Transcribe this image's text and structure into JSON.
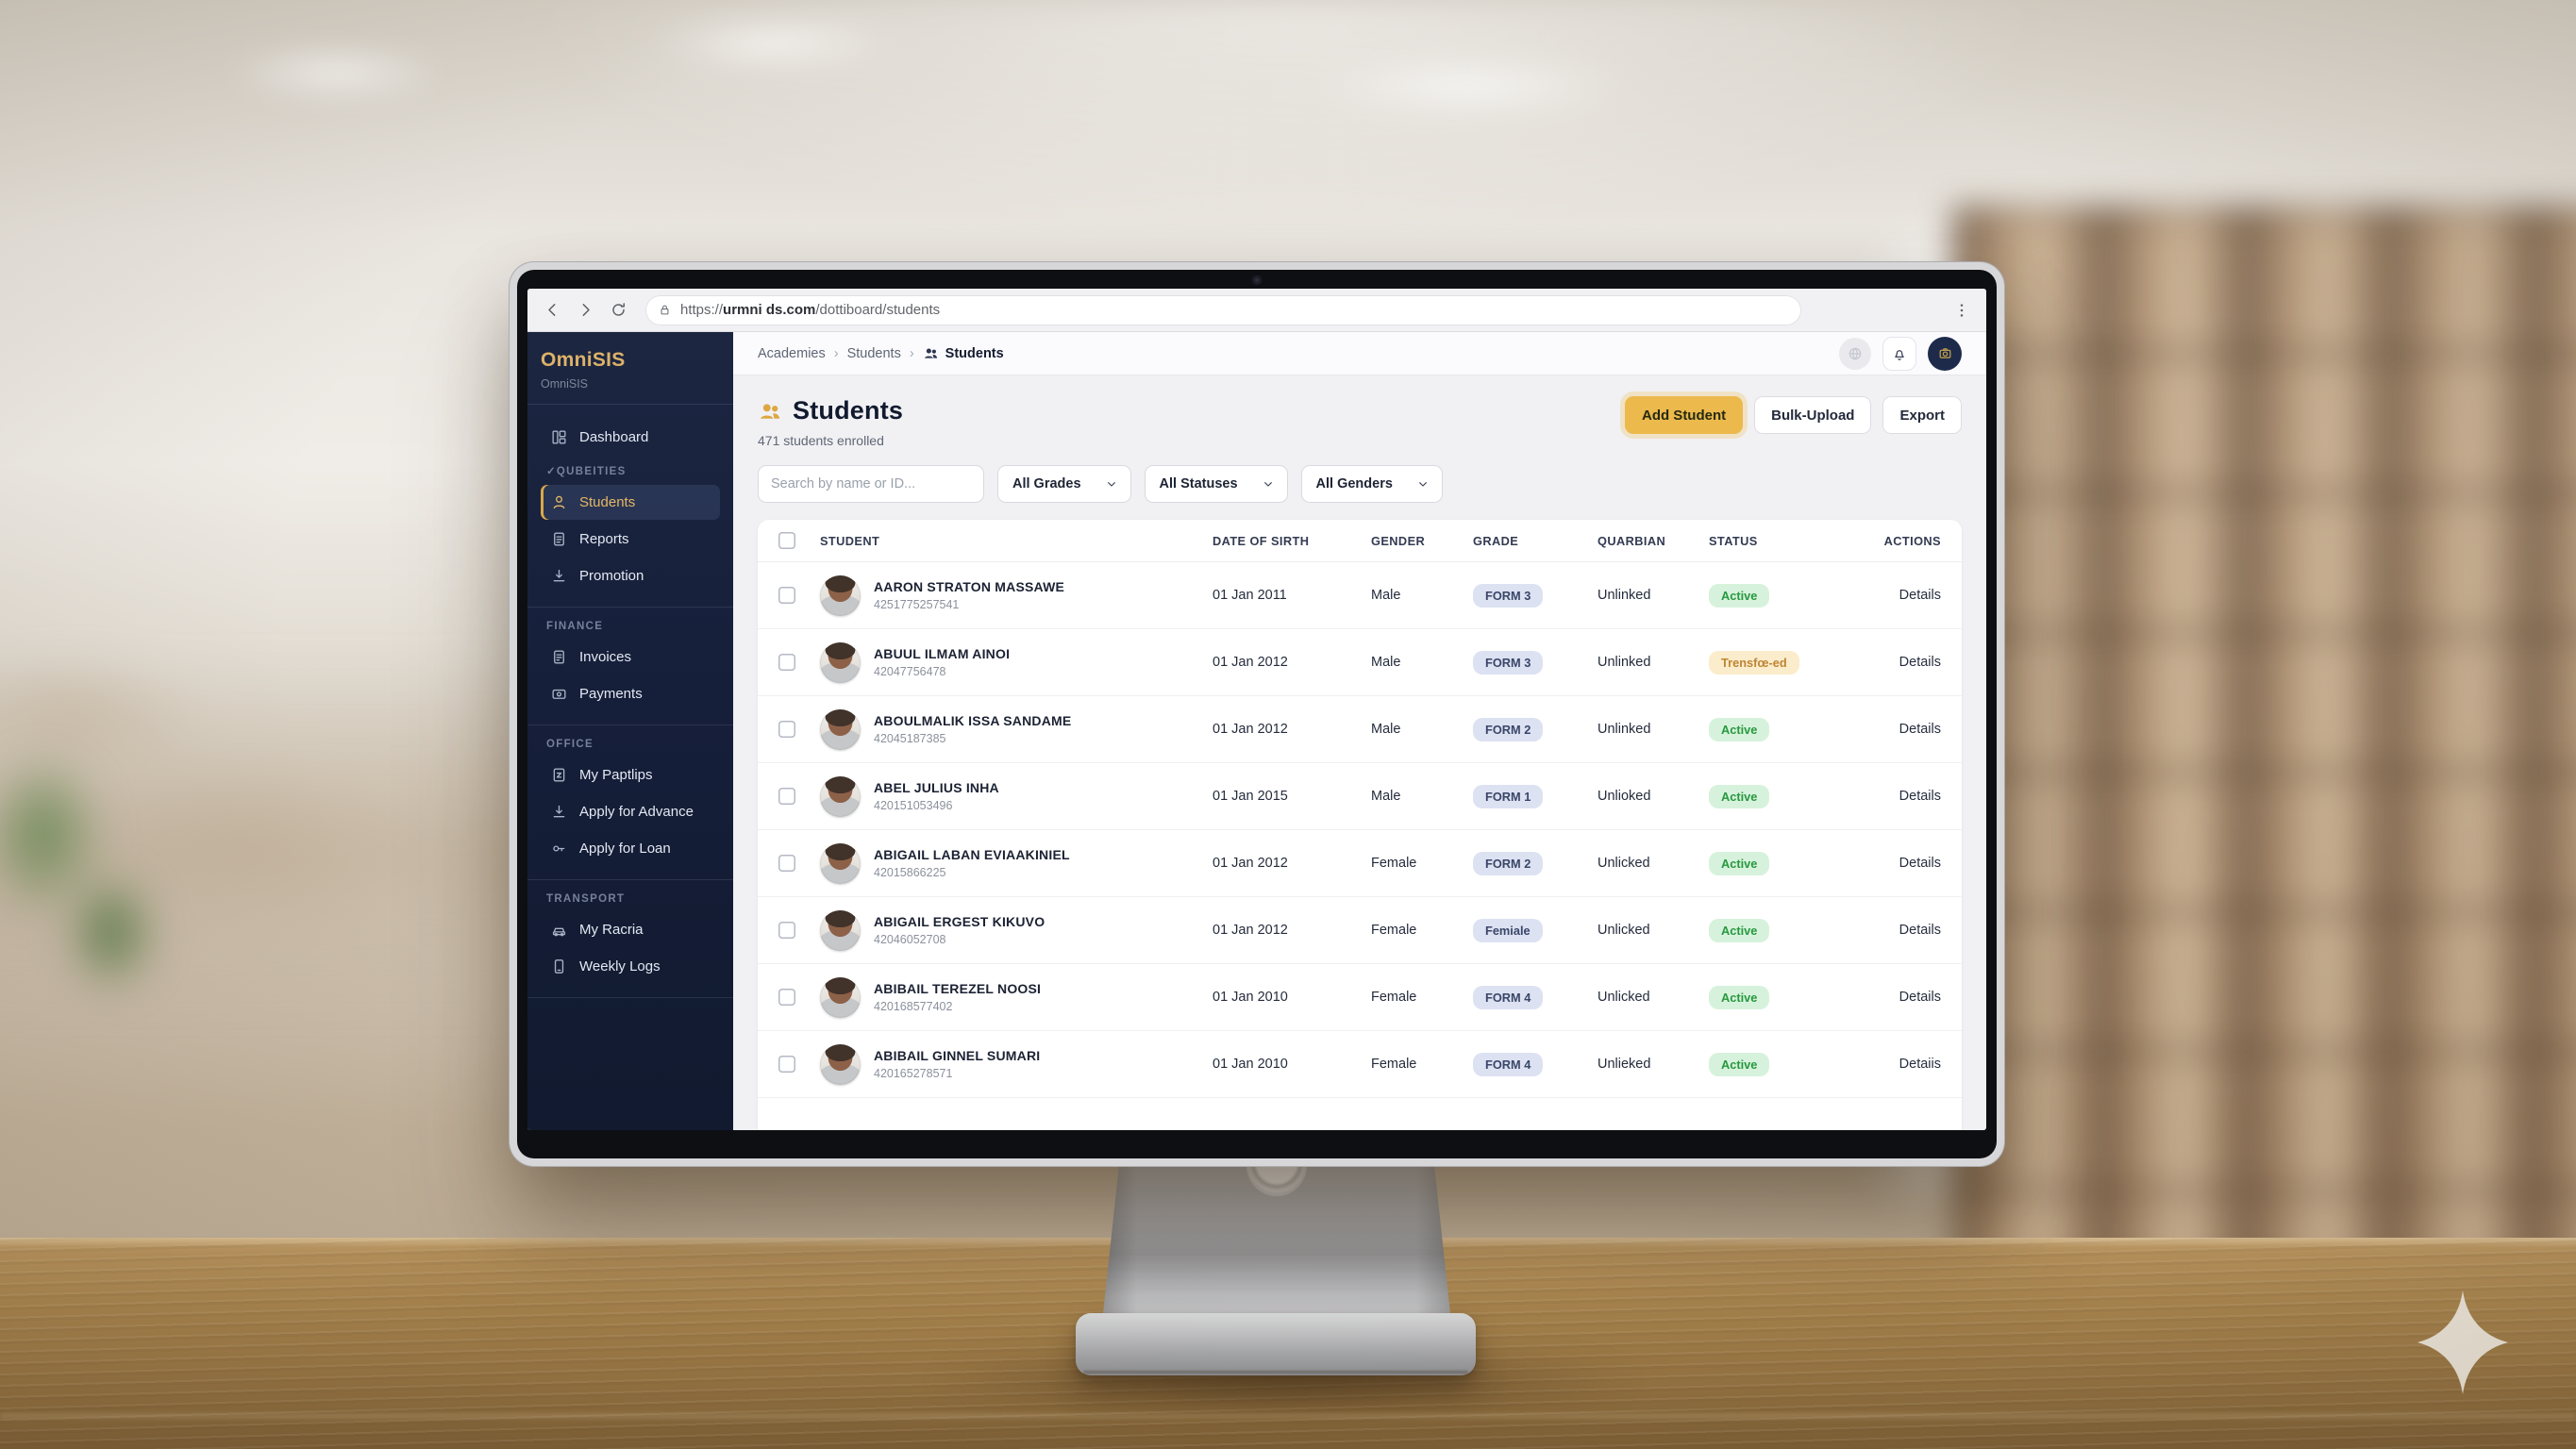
{
  "browser": {
    "url_scheme": "https://",
    "url_domain": "urmni ds.com",
    "url_path": "/dottiboard/students"
  },
  "sidebar": {
    "logo": "OmniSIS",
    "logo_sub": "OmniSIS",
    "sections": [
      {
        "label": "",
        "items": [
          {
            "icon": "grid",
            "label": "Dashboard",
            "active": false
          }
        ]
      },
      {
        "label": "✓QUBEITIES",
        "items": [
          {
            "icon": "person",
            "label": "Students",
            "active": true
          },
          {
            "icon": "report",
            "label": "Reports",
            "active": false
          },
          {
            "icon": "download",
            "label": "Promotion",
            "active": false
          }
        ]
      },
      {
        "label": "FINANCE",
        "items": [
          {
            "icon": "invoice",
            "label": "Invoices",
            "active": false
          },
          {
            "icon": "payments",
            "label": "Payments",
            "active": false
          }
        ]
      },
      {
        "label": "OFFICE",
        "items": [
          {
            "icon": "payslip",
            "label": "My Paptlips",
            "active": false
          },
          {
            "icon": "advance",
            "label": "Apply for Advance",
            "active": false
          },
          {
            "icon": "loan",
            "label": "Apply for Loan",
            "active": false
          }
        ]
      },
      {
        "label": "TRANSPORT",
        "items": [
          {
            "icon": "vehicle",
            "label": "My Racria",
            "active": false
          },
          {
            "icon": "logs",
            "label": "Weekly Logs",
            "active": false
          }
        ]
      }
    ]
  },
  "topbar": {
    "breadcrumb": [
      "Academies",
      "Students",
      "Students"
    ]
  },
  "page": {
    "title": "Students",
    "subtitle": "471 students enrolled",
    "buttons": [
      {
        "label": "Add Student",
        "style": "primary"
      },
      {
        "label": "Bulk-Upload",
        "style": "light"
      },
      {
        "label": "Export",
        "style": "light"
      }
    ]
  },
  "filters": {
    "search_placeholder": "Search by name or ID...",
    "dropdowns": [
      "All Grades",
      "All Statuses",
      "All Genders"
    ]
  },
  "table": {
    "headers": [
      "STUDENT",
      "DATE OF SIRTH",
      "GENDER",
      "GRADE",
      "QUARBIAN",
      "STATUS",
      "ACTIONS"
    ],
    "rows": [
      {
        "name": "AARON STRATON MASSAWE",
        "id": "4251775257541",
        "dob": "01 Jan 2011",
        "gender": "Male",
        "grade": "FORM 3",
        "guardian": "Unlinked",
        "status": "Active",
        "status_type": "active",
        "action": "Details"
      },
      {
        "name": "ABUUL ILMAM AINOI",
        "id": "42047756478",
        "dob": "01 Jan 2012",
        "gender": "Male",
        "grade": "FORM 3",
        "guardian": "Unlinked",
        "status": "Trensfœ-ed",
        "status_type": "transferred",
        "action": "Details"
      },
      {
        "name": "ABOULMALIK ISSA SANDAME",
        "id": "42045187385",
        "dob": "01 Jan 2012",
        "gender": "Male",
        "grade": "FORM 2",
        "guardian": "Unlinked",
        "status": "Active",
        "status_type": "active",
        "action": "Details"
      },
      {
        "name": "ABEL JULIUS INHA",
        "id": "420151053496",
        "dob": "01 Jan 2015",
        "gender": "Male",
        "grade": "FORM 1",
        "guardian": "Unlioked",
        "status": "Active",
        "status_type": "active",
        "action": "Details"
      },
      {
        "name": "ABIGAIL LABAN EVIAAKINIEL",
        "id": "42015866225",
        "dob": "01 Jan 2012",
        "gender": "Female",
        "grade": "FORM 2",
        "guardian": "Unlicked",
        "status": "Active",
        "status_type": "active",
        "action": "Details"
      },
      {
        "name": "ABIGAIL ERGEST KIKUVO",
        "id": "42046052708",
        "dob": "01 Jan 2012",
        "gender": "Female",
        "grade": "Femiale",
        "guardian": "Unlicked",
        "status": "Active",
        "status_type": "active",
        "action": "Details"
      },
      {
        "name": "ABIBAIL TEREZEL NOOSI",
        "id": "420168577402",
        "dob": "01 Jan 2010",
        "gender": "Female",
        "grade": "FORM 4",
        "guardian": "Unlicked",
        "status": "Active",
        "status_type": "active",
        "action": "Details"
      },
      {
        "name": "ABIBAIL GINNEL SUMARI",
        "id": "420165278571",
        "dob": "01 Jan 2010",
        "gender": "Female",
        "grade": "FORM 4",
        "guardian": "Unlieked",
        "status": "Active",
        "status_type": "active",
        "action": "Detaiis"
      }
    ]
  },
  "colors": {
    "accent_gold": "#ecb94d",
    "sidebar_bg": "#16203a",
    "sidebar_active_text": "#e4b765",
    "status_active_bg": "#d7f2dc",
    "status_active_text": "#27993f",
    "status_transfer_bg": "#fbeccb",
    "status_transfer_text": "#bd8535",
    "grade_badge_bg": "#dce2f2",
    "grade_badge_text": "#3a4668"
  }
}
